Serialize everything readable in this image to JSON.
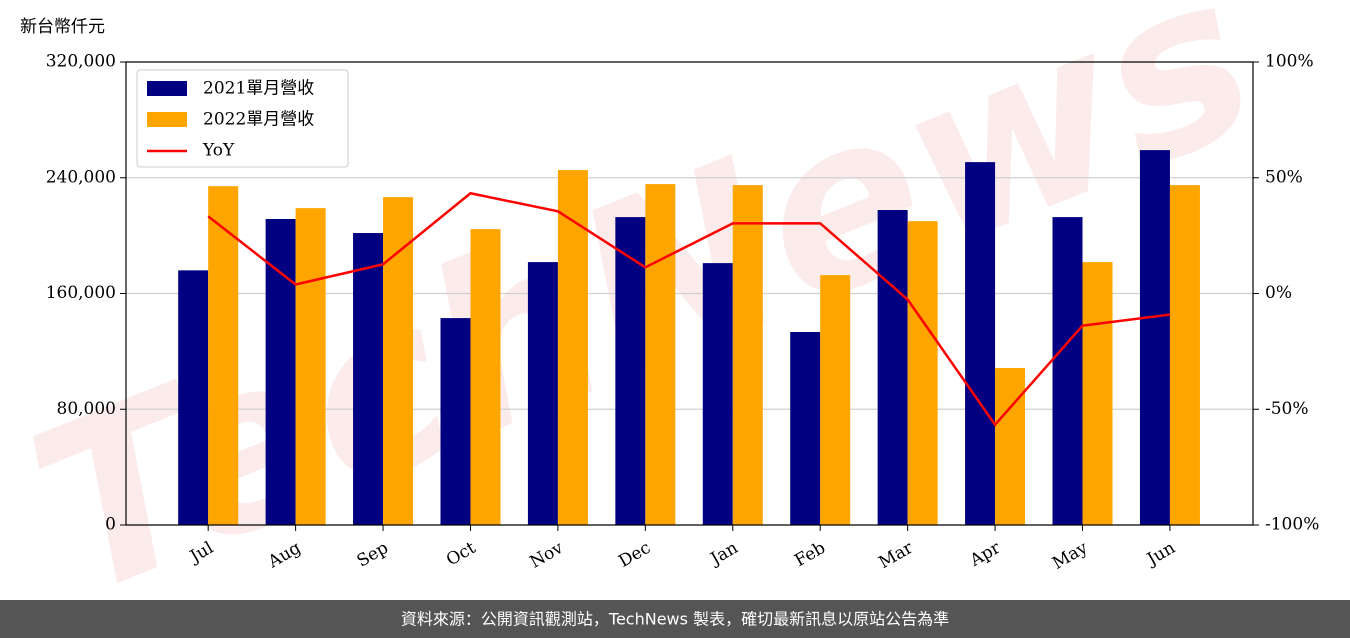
{
  "chart_data": {
    "type": "bar",
    "ylabel": "新台幣仟元",
    "watermark": "TechNews",
    "categories": [
      "Jul",
      "Aug",
      "Sep",
      "Oct",
      "Nov",
      "Dec",
      "Jan",
      "Feb",
      "Mar",
      "Apr",
      "May",
      "Jun"
    ],
    "series": [
      {
        "name": "2021單月營收",
        "color": "#000080",
        "type": "bar",
        "values": [
          176000,
          211500,
          201800,
          143000,
          181700,
          212800,
          181000,
          133400,
          217700,
          250800,
          212800,
          259100
        ]
      },
      {
        "name": "2022單月營收",
        "color": "#ffa500",
        "type": "bar",
        "values": [
          234200,
          219000,
          226600,
          204500,
          245300,
          235600,
          234900,
          172700,
          210000,
          108500,
          181700,
          234900
        ]
      },
      {
        "name": "YoY",
        "color": "#ff0000",
        "type": "line",
        "axis": "y2",
        "values": [
          33.3,
          3.9,
          12.6,
          43.3,
          35.5,
          11.3,
          30.3,
          30.3,
          -2.6,
          -56.7,
          -13.9,
          -9.1
        ]
      }
    ],
    "ylim": [
      0,
      320000
    ],
    "yticks": [
      0,
      {
        "value": 80000,
        "label": "80,000"
      },
      {
        "value": 160000,
        "label": "160,000"
      },
      {
        "value": 240000,
        "label": "240,000"
      },
      {
        "value": 320000,
        "label": "320,000"
      }
    ],
    "y2lim": [
      -100,
      100
    ],
    "y2ticks": [
      {
        "value": -100,
        "label": "-100%"
      },
      {
        "value": -50,
        "label": "-50%"
      },
      {
        "value": 0,
        "label": "0%"
      },
      {
        "value": 50,
        "label": "50%"
      },
      {
        "value": 100,
        "label": "100%"
      }
    ],
    "grid": true,
    "legend": "upper left"
  },
  "footer": {
    "text": "資料來源：公開資訊觀測站，TechNews 製表，確切最新訊息以原站公告為準"
  }
}
